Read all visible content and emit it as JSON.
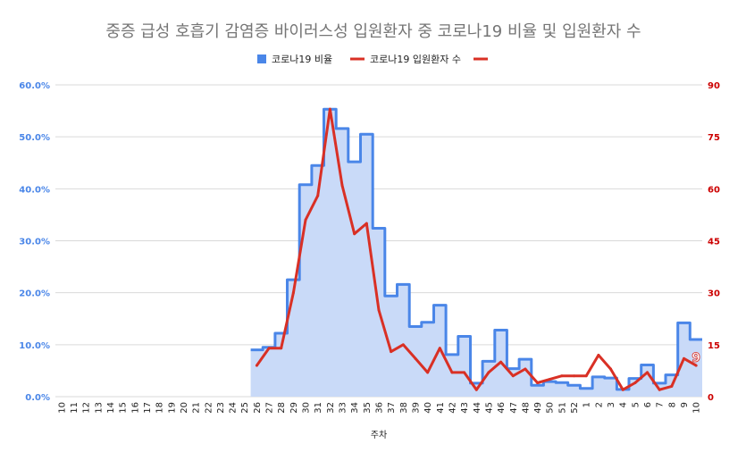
{
  "chart_data": {
    "type": "area+line",
    "title": "중증 급성 호흡기 감염증 바이러스성 입원환자 중 코로나19 비율 및 입원환자 수",
    "xlabel": "주차",
    "legend_position": "top",
    "legend": [
      "코로나19 비율",
      "코로나19 입원환자 수",
      ""
    ],
    "categories": [
      "10",
      "11",
      "12",
      "13",
      "14",
      "15",
      "16",
      "17",
      "18",
      "19",
      "20",
      "21",
      "22",
      "23",
      "24",
      "25",
      "26",
      "27",
      "28",
      "29",
      "30",
      "31",
      "32",
      "33",
      "34",
      "35",
      "36",
      "37",
      "38",
      "39",
      "40",
      "41",
      "42",
      "43",
      "44",
      "45",
      "46",
      "47",
      "48",
      "49",
      "50",
      "51",
      "52",
      "1",
      "2",
      "3",
      "4",
      "5",
      "6",
      "7",
      "8",
      "9",
      "10"
    ],
    "y_left": {
      "ticks": [
        "0.0%",
        "10.0%",
        "20.0%",
        "30.0%",
        "40.0%",
        "50.0%",
        "60.0%"
      ],
      "range": [
        0,
        60
      ]
    },
    "y_right": {
      "ticks": [
        "0",
        "15",
        "30",
        "45",
        "60",
        "75",
        "90"
      ],
      "range": [
        0,
        90
      ]
    },
    "series": [
      {
        "name": "코로나19 비율",
        "axis": "left",
        "style": "stepped-area",
        "color": "#4a86e8",
        "fill": "#c9daf8",
        "values": [
          null,
          null,
          null,
          null,
          null,
          null,
          null,
          null,
          null,
          null,
          null,
          null,
          null,
          null,
          null,
          null,
          9.0,
          9.5,
          12.2,
          22.5,
          40.8,
          44.5,
          55.3,
          51.6,
          45.2,
          50.5,
          32.4,
          19.4,
          21.6,
          13.5,
          14.3,
          17.6,
          8.1,
          11.6,
          2.6,
          6.8,
          12.8,
          5.4,
          7.2,
          2.2,
          2.9,
          2.7,
          2.2,
          1.6,
          3.8,
          3.6,
          1.4,
          3.5,
          6.1,
          2.6,
          4.2,
          14.2,
          11.0
        ]
      },
      {
        "name": "코로나19 입원환자 수",
        "axis": "right",
        "style": "line",
        "color": "#d93025",
        "values": [
          null,
          null,
          null,
          null,
          null,
          null,
          null,
          null,
          null,
          null,
          null,
          null,
          null,
          null,
          null,
          null,
          9,
          14,
          14,
          30,
          51,
          58,
          83,
          61,
          47,
          50,
          25,
          13,
          15,
          11,
          7,
          14,
          7,
          7,
          2,
          7,
          10,
          6,
          8,
          4,
          5,
          6,
          6,
          6,
          12,
          8,
          2,
          4,
          7,
          2,
          3,
          11,
          9
        ]
      }
    ],
    "data_labels": [
      {
        "series": "코로나19 입원환자 수",
        "category_index": 52,
        "text": "9"
      }
    ]
  }
}
